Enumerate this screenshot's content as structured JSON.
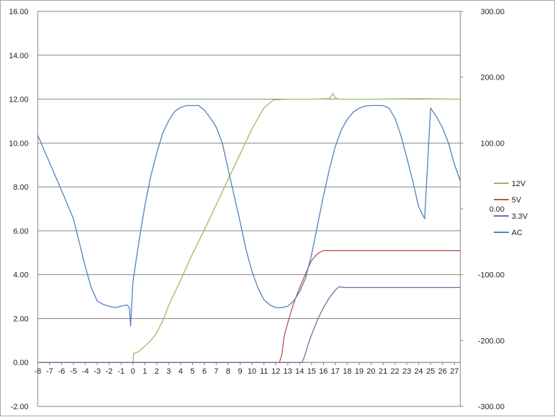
{
  "chart_data": {
    "type": "line",
    "title": "",
    "xlabel": "",
    "ylabel": "",
    "xlim": [
      -8,
      27.5
    ],
    "ylim": [
      -2,
      16
    ],
    "y2lim": [
      -300,
      300
    ],
    "grid": true,
    "legend_position": "right",
    "x_ticks": [
      "-8",
      "-7",
      "-6",
      "-5",
      "-4",
      "-3",
      "-2",
      "-1",
      "0",
      "1",
      "2",
      "3",
      "4",
      "5",
      "6",
      "7",
      "8",
      "9",
      "10",
      "11",
      "12",
      "13",
      "14",
      "15",
      "16",
      "17",
      "18",
      "19",
      "20",
      "21",
      "22",
      "23",
      "24",
      "25",
      "26",
      "27"
    ],
    "y_ticks": [
      "-2.00",
      "0.00",
      "2.00",
      "4.00",
      "6.00",
      "8.00",
      "10.00",
      "12.00",
      "14.00",
      "16.00"
    ],
    "y2_ticks": [
      "-300.00",
      "-200.00",
      "-100.00",
      "0.00",
      "100.00",
      "200.00",
      "300.00"
    ],
    "series": [
      {
        "name": "12V",
        "axis": "left",
        "color": "#9bbb59",
        "x": [
          -8,
          0,
          0.05,
          0.5,
          1.0,
          1.5,
          2.0,
          2.5,
          3.0,
          4.0,
          5.0,
          6.0,
          7.0,
          8.0,
          9.0,
          10.0,
          11.0,
          11.8,
          13.0,
          15.0,
          16.5,
          16.8,
          17.0,
          17.3,
          20.0,
          24.0,
          27.5
        ],
        "y": [
          0,
          0,
          0.4,
          0.5,
          0.75,
          1.0,
          1.35,
          1.9,
          2.6,
          3.75,
          4.95,
          6.05,
          7.2,
          8.35,
          9.5,
          10.65,
          11.6,
          11.97,
          12.0,
          12.0,
          12.02,
          12.25,
          12.05,
          12.0,
          12.0,
          12.02,
          12.0
        ]
      },
      {
        "name": "5V",
        "axis": "left",
        "color": "#c0504d",
        "x": [
          -8,
          12.3,
          12.5,
          12.7,
          13.0,
          13.5,
          14.0,
          14.5,
          15.0,
          15.5,
          15.8,
          16.0,
          17.0,
          20.0,
          27.5
        ],
        "y": [
          0,
          0,
          0.35,
          1.2,
          1.8,
          2.7,
          3.4,
          4.05,
          4.65,
          4.95,
          5.05,
          5.1,
          5.1,
          5.1,
          5.1
        ]
      },
      {
        "name": "3.3V",
        "axis": "left",
        "color": "#8064a2",
        "x": [
          -8,
          14.2,
          14.4,
          14.7,
          15.0,
          15.5,
          16.0,
          16.5,
          17.0,
          17.3,
          17.6,
          18.0,
          20.0,
          27.5
        ],
        "y": [
          0,
          0,
          0.25,
          0.8,
          1.25,
          1.95,
          2.5,
          2.95,
          3.3,
          3.45,
          3.43,
          3.42,
          3.42,
          3.42
        ]
      },
      {
        "name": "AC",
        "axis": "right",
        "color": "#4f81bd",
        "x": [
          -8,
          -7,
          -6,
          -5,
          -4,
          -3.5,
          -3,
          -2.5,
          -2,
          -1.5,
          -1,
          -0.5,
          -0.3,
          -0.2,
          0,
          0.5,
          1.0,
          1.5,
          2.0,
          2.5,
          3.0,
          3.5,
          4.0,
          4.5,
          5.0,
          5.5,
          6.0,
          6.5,
          7.0,
          7.5,
          8.0,
          8.5,
          9.0,
          9.5,
          10.0,
          10.5,
          11.0,
          11.5,
          12.0,
          12.5,
          13.0,
          13.5,
          14.0,
          14.5,
          15.0,
          15.5,
          16.0,
          16.5,
          17.0,
          17.5,
          18.0,
          18.5,
          19.0,
          19.5,
          20.0,
          20.5,
          21.0,
          21.5,
          22.0,
          22.5,
          23.0,
          23.5,
          24.0,
          24.5,
          25.0,
          25.5,
          26.0,
          26.5,
          27.0,
          27.5
        ],
        "y": [
          112,
          70,
          28,
          -15,
          -88,
          -120,
          -140,
          -145,
          -148,
          -150,
          -148,
          -146,
          -150,
          -178,
          -110,
          -50,
          5,
          50,
          85,
          115,
          134,
          148,
          154,
          157,
          157,
          157,
          150,
          138,
          124,
          100,
          60,
          20,
          -20,
          -62,
          -95,
          -120,
          -138,
          -146,
          -150,
          -150,
          -148,
          -140,
          -126,
          -105,
          -70,
          -25,
          20,
          60,
          95,
          120,
          136,
          147,
          153,
          156,
          157,
          157,
          157,
          153,
          138,
          112,
          78,
          42,
          3,
          -15,
          153,
          140,
          123,
          100,
          68,
          42
        ]
      }
    ]
  }
}
